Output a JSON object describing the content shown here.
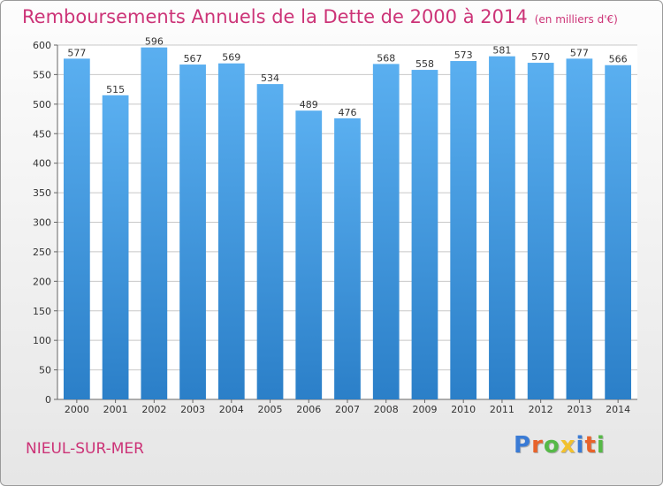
{
  "title": "Remboursements Annuels de la Dette de 2000 à 2014",
  "subtitle": "(en milliers d'€)",
  "town": "NIEUL-SUR-MER",
  "logo": {
    "letters": [
      "P",
      "r",
      "o",
      "x",
      "i",
      "t",
      "i"
    ],
    "colors": [
      "#3a7bd5",
      "#e8632b",
      "#56b947",
      "#f2c12e",
      "#3a7bd5",
      "#e8632b",
      "#56b947"
    ]
  },
  "colors": {
    "title": "#cc3377",
    "bar_light": "#5aaff0",
    "bar_dark": "#2b7fc8",
    "grid": "#c8c8c8"
  },
  "chart_data": {
    "type": "bar",
    "title": "Remboursements Annuels de la Dette de 2000 à 2014",
    "subtitle": "(en milliers d'€)",
    "xlabel": "",
    "ylabel": "",
    "categories": [
      "2000",
      "2001",
      "2002",
      "2003",
      "2004",
      "2005",
      "2006",
      "2007",
      "2008",
      "2009",
      "2010",
      "2011",
      "2012",
      "2013",
      "2014"
    ],
    "values": [
      577,
      515,
      596,
      567,
      569,
      534,
      489,
      476,
      568,
      558,
      573,
      581,
      570,
      577,
      566
    ],
    "ylim": [
      0,
      600
    ],
    "yticks": [
      "0",
      "50",
      "100",
      "150",
      "200",
      "250",
      "300",
      "350",
      "400",
      "450",
      "500",
      "550",
      "600"
    ],
    "grid": true,
    "legend": "none"
  }
}
